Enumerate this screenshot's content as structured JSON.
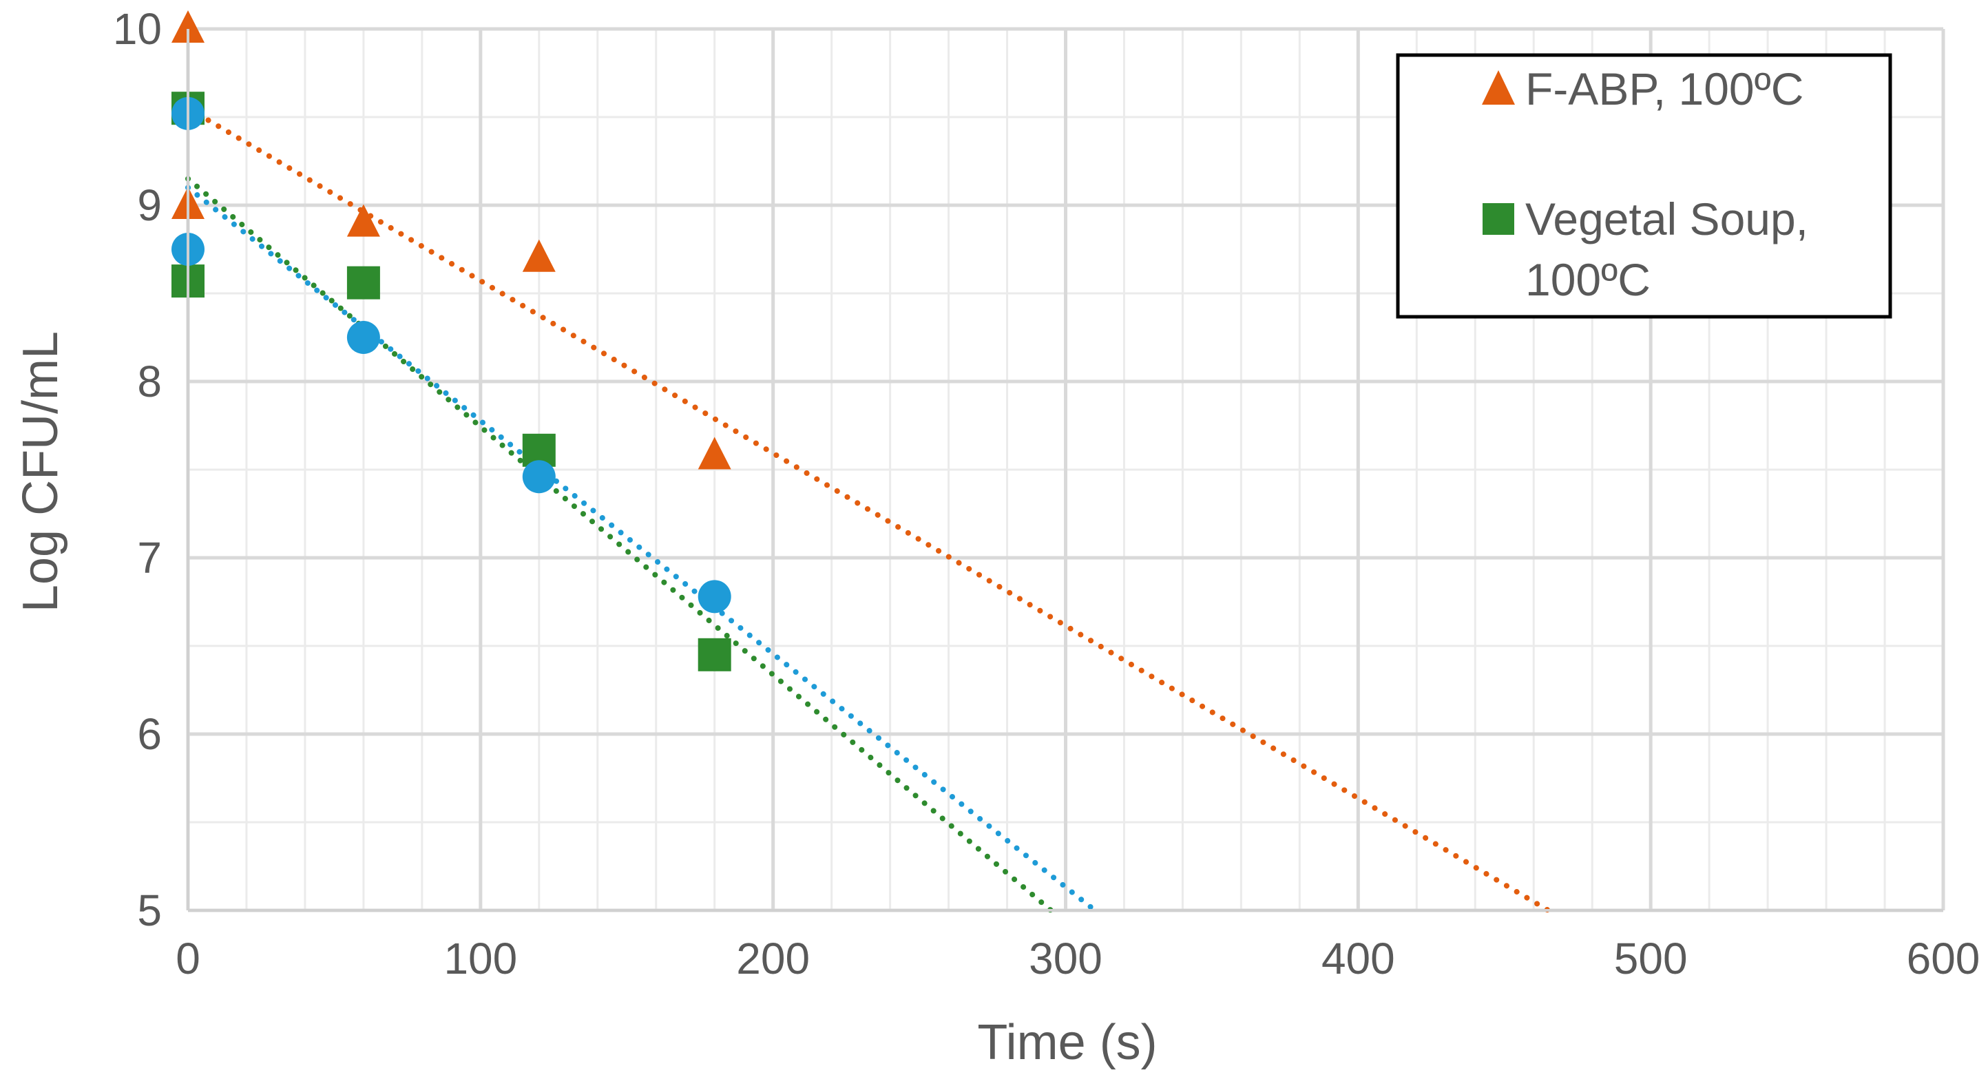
{
  "chart_data": {
    "type": "scatter",
    "title": "",
    "xlabel": "Time (s)",
    "ylabel": "Log CFU/mL",
    "xlim": [
      0,
      600
    ],
    "ylim": [
      5,
      10
    ],
    "xticks": [
      0,
      100,
      200,
      300,
      400,
      500,
      600
    ],
    "yticks": [
      5,
      6,
      7,
      8,
      9,
      10
    ],
    "x_minor_step": 20,
    "y_minor_step": 0.5,
    "grid": true,
    "legend_position": "top-right",
    "series": [
      {
        "name": "F-ABP, 100ºC",
        "marker": "triangle",
        "color": "#E35D0E",
        "in_legend": true,
        "points": [
          [
            0,
            10.0
          ],
          [
            0,
            9.0
          ],
          [
            60,
            8.9
          ],
          [
            120,
            8.7
          ],
          [
            180,
            7.58
          ]
        ],
        "trendline": {
          "style": "dotted",
          "intercept": 9.55,
          "end_x": 465,
          "end_y": 5.0
        }
      },
      {
        "name": "Vegetal Soup, 100ºC",
        "marker": "square",
        "color": "#2E8B2E",
        "in_legend": true,
        "points": [
          [
            0,
            9.55
          ],
          [
            0,
            8.57
          ],
          [
            60,
            8.56
          ],
          [
            120,
            7.61
          ],
          [
            180,
            6.45
          ]
        ],
        "trendline": {
          "style": "dotted",
          "intercept": 9.15,
          "end_x": 295,
          "end_y": 5.0
        }
      },
      {
        "name": "",
        "marker": "circle",
        "color": "#1E9BD7",
        "in_legend": false,
        "points": [
          [
            0,
            9.52
          ],
          [
            0,
            8.75
          ],
          [
            60,
            8.25
          ],
          [
            120,
            7.46
          ],
          [
            180,
            6.78
          ]
        ],
        "trendline": {
          "style": "dotted",
          "intercept": 9.1,
          "end_x": 310,
          "end_y": 5.0
        }
      }
    ]
  }
}
